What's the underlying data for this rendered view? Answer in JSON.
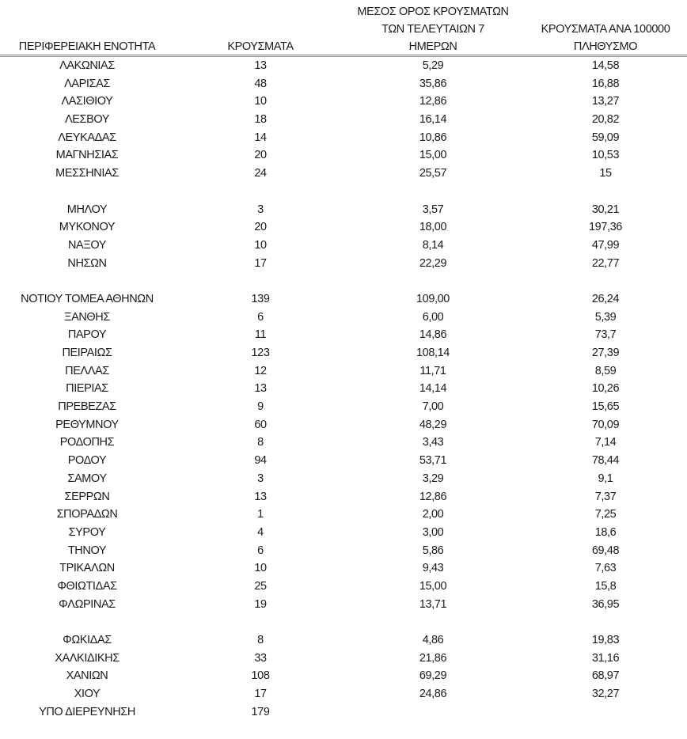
{
  "headers": {
    "region": "ΠΕΡΙΦΕΡΕΙΑΚΗ ΕΝΟΤΗΤΑ",
    "cases": "ΚΡΟΥΣΜΑΤΑ",
    "avg_line1": "ΜΕΣΟΣ ΟΡΟΣ ΚΡΟΥΣΜΑΤΩΝ",
    "avg_line2": "ΤΩΝ ΤΕΛΕΥΤΑΙΩΝ 7",
    "avg_line3": "ΗΜΕΡΩΝ",
    "per100k_line1": "ΚΡΟΥΣΜΑΤΑ ΑΝΑ 100000",
    "per100k_line2": "ΠΛΗΘΥΣΜΟ"
  },
  "groups": [
    [
      [
        "ΛΑΚΩΝΙΑΣ",
        "13",
        "5,29",
        "14,58"
      ],
      [
        "ΛΑΡΙΣΑΣ",
        "48",
        "35,86",
        "16,88"
      ],
      [
        "ΛΑΣΙΘΙΟΥ",
        "10",
        "12,86",
        "13,27"
      ],
      [
        "ΛΕΣΒΟΥ",
        "18",
        "16,14",
        "20,82"
      ],
      [
        "ΛΕΥΚΑΔΑΣ",
        "14",
        "10,86",
        "59,09"
      ],
      [
        "ΜΑΓΝΗΣΙΑΣ",
        "20",
        "15,00",
        "10,53"
      ],
      [
        "ΜΕΣΣΗΝΙΑΣ",
        "24",
        "25,57",
        "15"
      ]
    ],
    [
      [
        "ΜΗΛΟΥ",
        "3",
        "3,57",
        "30,21"
      ],
      [
        "ΜΥΚΟΝΟΥ",
        "20",
        "18,00",
        "197,36"
      ],
      [
        "ΝΑΞΟΥ",
        "10",
        "8,14",
        "47,99"
      ],
      [
        "ΝΗΣΩΝ",
        "17",
        "22,29",
        "22,77"
      ]
    ],
    [
      [
        "ΝΟΤΙΟΥ ΤΟΜΕΑ ΑΘΗΝΩΝ",
        "139",
        "109,00",
        "26,24"
      ],
      [
        "ΞΑΝΘΗΣ",
        "6",
        "6,00",
        "5,39"
      ],
      [
        "ΠΑΡΟΥ",
        "11",
        "14,86",
        "73,7"
      ],
      [
        "ΠΕΙΡΑΙΩΣ",
        "123",
        "108,14",
        "27,39"
      ],
      [
        "ΠΕΛΛΑΣ",
        "12",
        "11,71",
        "8,59"
      ],
      [
        "ΠΙΕΡΙΑΣ",
        "13",
        "14,14",
        "10,26"
      ],
      [
        "ΠΡΕΒΕΖΑΣ",
        "9",
        "7,00",
        "15,65"
      ],
      [
        "ΡΕΘΥΜΝΟΥ",
        "60",
        "48,29",
        "70,09"
      ],
      [
        "ΡΟΔΟΠΗΣ",
        "8",
        "3,43",
        "7,14"
      ],
      [
        "ΡΟΔΟΥ",
        "94",
        "53,71",
        "78,44"
      ],
      [
        "ΣΑΜΟΥ",
        "3",
        "3,29",
        "9,1"
      ],
      [
        "ΣΕΡΡΩΝ",
        "13",
        "12,86",
        "7,37"
      ],
      [
        "ΣΠΟΡΑΔΩΝ",
        "1",
        "2,00",
        "7,25"
      ],
      [
        "ΣΥΡΟΥ",
        "4",
        "3,00",
        "18,6"
      ],
      [
        "ΤΗΝΟΥ",
        "6",
        "5,86",
        "69,48"
      ],
      [
        "ΤΡΙΚΑΛΩΝ",
        "10",
        "9,43",
        "7,63"
      ],
      [
        "ΦΘΙΩΤΙΔΑΣ",
        "25",
        "15,00",
        "15,8"
      ],
      [
        "ΦΛΩΡΙΝΑΣ",
        "19",
        "13,71",
        "36,95"
      ]
    ],
    [
      [
        "ΦΩΚΙΔΑΣ",
        "8",
        "4,86",
        "19,83"
      ],
      [
        "ΧΑΛΚΙΔΙΚΗΣ",
        "33",
        "21,86",
        "31,16"
      ],
      [
        "ΧΑΝΙΩΝ",
        "108",
        "69,29",
        "68,97"
      ],
      [
        "ΧΙΟΥ",
        "17",
        "24,86",
        "32,27"
      ],
      [
        "ΥΠΟ ΔΙΕΡΕΥΝΗΣΗ",
        "179",
        "",
        ""
      ]
    ]
  ]
}
